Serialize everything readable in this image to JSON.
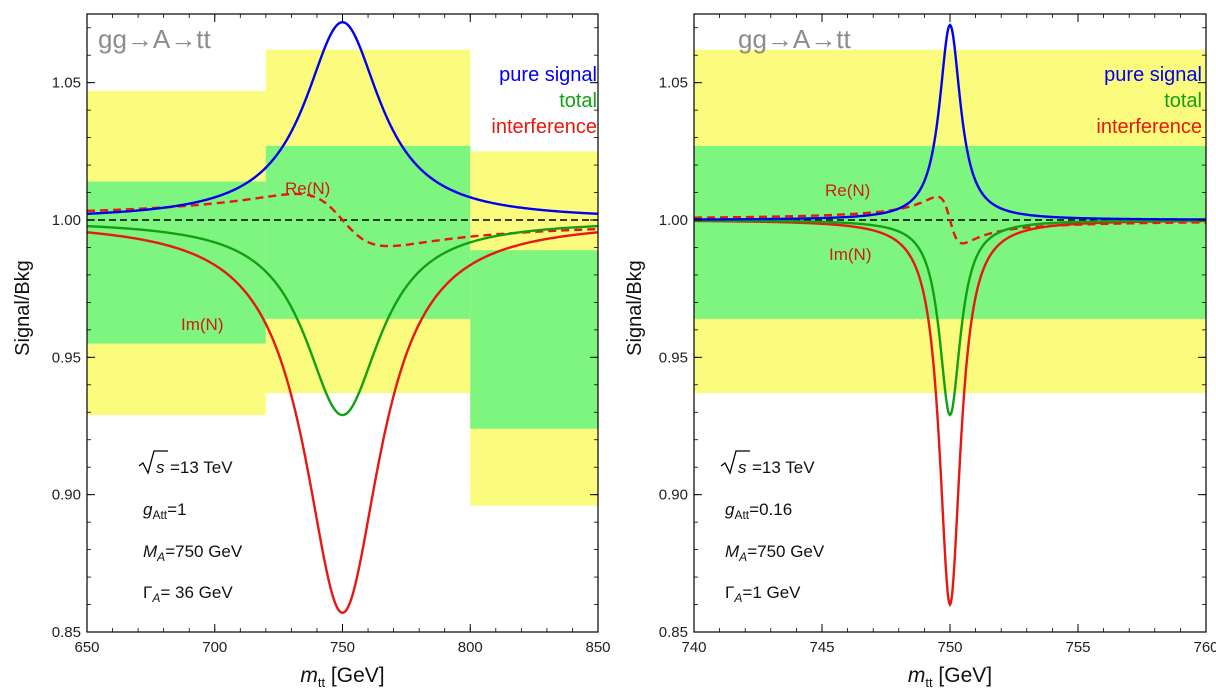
{
  "chart_data": [
    {
      "type": "line",
      "title": "",
      "xlabel_main": "m",
      "xlabel_sub": "tt",
      "xlabel_unit": " [GeV]",
      "ylabel": "Signal/Bkg",
      "xlim": [
        650,
        850
      ],
      "ylim": [
        0.85,
        1.075
      ],
      "xticks": [
        650,
        700,
        750,
        800,
        850
      ],
      "yticks": [
        0.85,
        0.9,
        0.95,
        1.0,
        1.05
      ],
      "ytick_labels": [
        "0.85",
        "0.90",
        "0.95",
        "1.00",
        "1.05"
      ],
      "process_label": "gg→A→tt",
      "legend": [
        {
          "label": "pure signal",
          "color": "#0000ee"
        },
        {
          "label": "total",
          "color": "#12a012"
        },
        {
          "label": "interference",
          "color": "#e8170f"
        }
      ],
      "annotations": {
        "re": "Re(N)",
        "im": "Im(N)"
      },
      "params": {
        "sqrt_s": "=13 TeV",
        "g_prefix": "g",
        "g_sub": "Att",
        "g_value": "=1",
        "m_prefix": "M",
        "m_sub": "A",
        "m_value": "=750 GeV",
        "gamma_prefix": "Γ",
        "gamma_sub": "A",
        "gamma_value": "= 36 GeV"
      },
      "bands": [
        {
          "x": [
            650,
            720
          ],
          "yellow": [
            0.929,
            1.047
          ],
          "green": [
            0.955,
            1.014
          ]
        },
        {
          "x": [
            720,
            800
          ],
          "yellow": [
            0.937,
            1.062
          ],
          "green": [
            0.964,
            1.027
          ]
        },
        {
          "x": [
            800,
            850
          ],
          "yellow": [
            0.896,
            1.025
          ],
          "green": [
            0.924,
            0.989
          ]
        }
      ],
      "mass": 750,
      "width": 36,
      "series": [
        {
          "key": "signal",
          "color": "#0000ee",
          "dashed": false,
          "peak": 0.072
        },
        {
          "key": "total",
          "color": "#12a012",
          "dashed": false,
          "dip": -0.071,
          "disp": 0.0
        },
        {
          "key": "im",
          "color": "#e8170f",
          "dashed": false,
          "dip": -0.143
        },
        {
          "key": "re",
          "color": "#e8170f",
          "dashed": true,
          "disp": 0.0095
        }
      ],
      "reference_line": 1.0
    },
    {
      "type": "line",
      "title": "",
      "xlabel_main": "m",
      "xlabel_sub": "tt",
      "xlabel_unit": " [GeV]",
      "ylabel": "Signal/Bkg",
      "xlim": [
        740,
        760
      ],
      "ylim": [
        0.85,
        1.075
      ],
      "xticks": [
        740,
        745,
        750,
        755,
        760
      ],
      "yticks": [
        0.85,
        0.9,
        0.95,
        1.0,
        1.05
      ],
      "ytick_labels": [
        "0.85",
        "0.90",
        "0.95",
        "1.00",
        "1.05"
      ],
      "process_label": "gg→A→tt",
      "legend": [
        {
          "label": "pure signal",
          "color": "#0000ee"
        },
        {
          "label": "total",
          "color": "#12a012"
        },
        {
          "label": "interference",
          "color": "#e8170f"
        }
      ],
      "annotations": {
        "re": "Re(N)",
        "im": "Im(N)"
      },
      "params": {
        "sqrt_s": "=13 TeV",
        "g_prefix": "g",
        "g_sub": "Att",
        "g_value": "=0.16",
        "m_prefix": "M",
        "m_sub": "A",
        "m_value": "=750 GeV",
        "gamma_prefix": "Γ",
        "gamma_sub": "A",
        "gamma_value": "=1 GeV"
      },
      "bands": [
        {
          "x": [
            740,
            760
          ],
          "yellow": [
            0.937,
            1.062
          ],
          "green": [
            0.964,
            1.027
          ]
        }
      ],
      "mass": 750,
      "width": 1,
      "series": [
        {
          "key": "signal",
          "color": "#0000ee",
          "dashed": false,
          "peak": 0.071
        },
        {
          "key": "total",
          "color": "#12a012",
          "dashed": false,
          "dip": -0.071,
          "disp": 0.0
        },
        {
          "key": "im",
          "color": "#e8170f",
          "dashed": false,
          "dip": -0.14
        },
        {
          "key": "re",
          "color": "#e8170f",
          "dashed": true,
          "disp": 0.0085
        }
      ],
      "reference_line": 1.0
    }
  ]
}
